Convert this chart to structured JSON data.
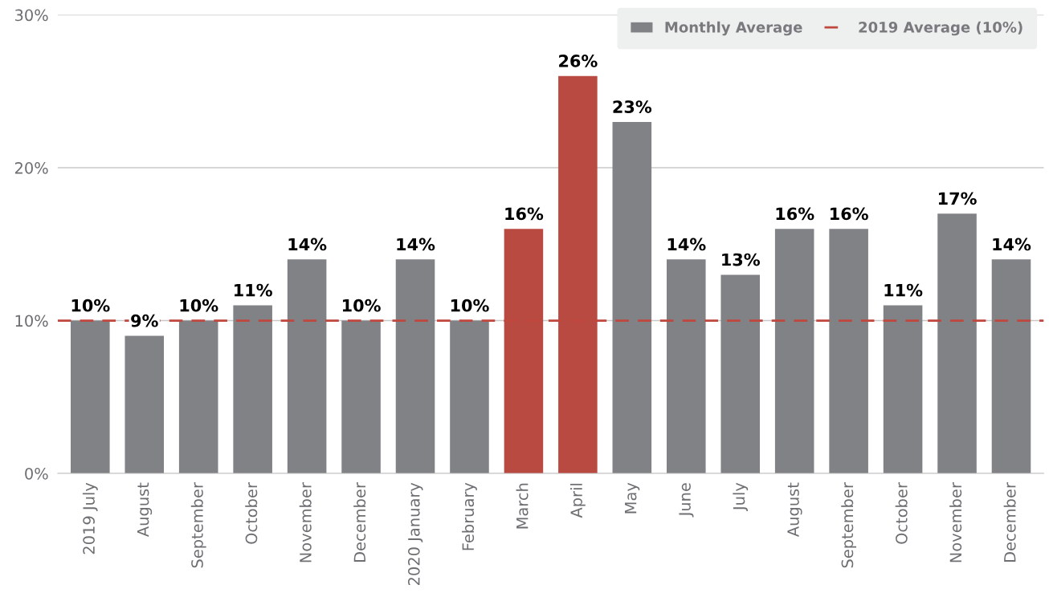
{
  "chart_data": {
    "type": "bar",
    "categories": [
      "2019 July",
      "August",
      "September",
      "October",
      "November",
      "December",
      "2020 January",
      "February",
      "March",
      "April",
      "May",
      "June",
      "July",
      "August",
      "September",
      "October",
      "November",
      "December"
    ],
    "series": [
      {
        "name": "Monthly Average",
        "color": "#818286",
        "colors": [
          "#818286",
          "#818286",
          "#818286",
          "#818286",
          "#818286",
          "#818286",
          "#818286",
          "#818286",
          "#b84a42",
          "#b84a42",
          "#818286",
          "#818286",
          "#818286",
          "#818286",
          "#818286",
          "#818286",
          "#818286",
          "#818286"
        ],
        "values": [
          10,
          9,
          10,
          11,
          14,
          10,
          14,
          10,
          16,
          26,
          23,
          14,
          13,
          16,
          16,
          11,
          17,
          14
        ],
        "value_labels": [
          "10%",
          "9%",
          "10%",
          "11%",
          "14%",
          "10%",
          "14%",
          "10%",
          "16%",
          "26%",
          "23%",
          "14%",
          "13%",
          "16%",
          "16%",
          "11%",
          "17%",
          "14%"
        ]
      }
    ],
    "ylim": [
      0,
      30
    ],
    "yticks": [
      {
        "value": 0,
        "label": "0%"
      },
      {
        "value": 10,
        "label": "10%"
      },
      {
        "value": 20,
        "label": "20%"
      },
      {
        "value": 30,
        "label": "30%"
      }
    ],
    "ref_lines": [
      {
        "axis": "y",
        "value": 10,
        "label": "2019 Average (10%)",
        "color": "#c0473e",
        "line_style": "dashed"
      }
    ],
    "grid": "y",
    "legend": "top right"
  }
}
